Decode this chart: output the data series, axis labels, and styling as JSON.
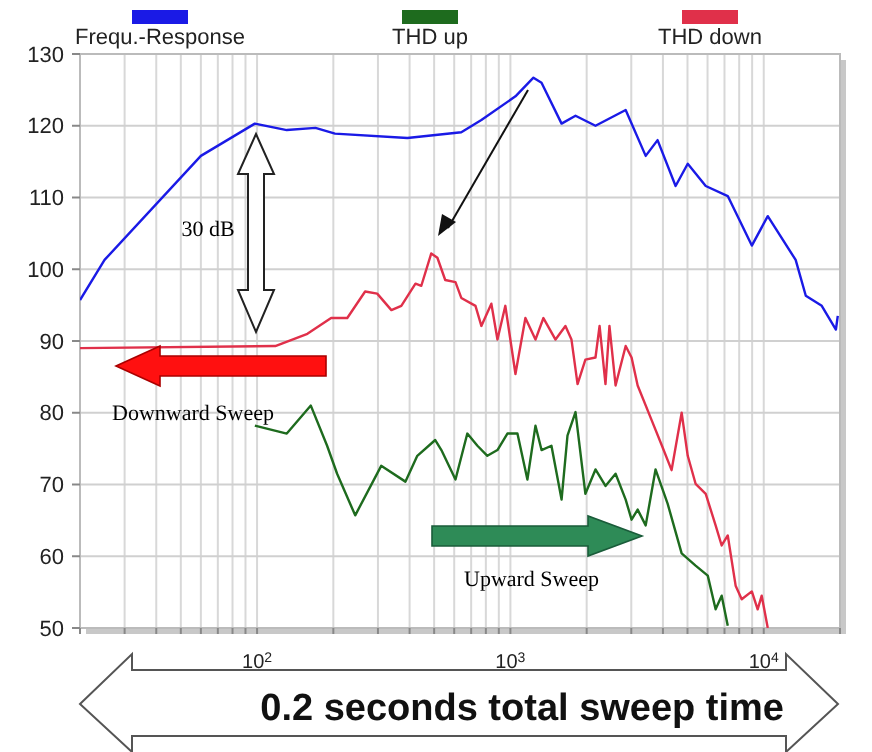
{
  "chart_data": {
    "type": "line",
    "log": "x",
    "xlim": [
      20,
      20000
    ],
    "ylim": [
      50,
      130
    ],
    "xticks": [
      {
        "value": 20,
        "label": null
      },
      {
        "value": 30,
        "label": null
      },
      {
        "value": 40,
        "label": null
      },
      {
        "value": 50,
        "label": null
      },
      {
        "value": 60,
        "label": null
      },
      {
        "value": 70,
        "label": null
      },
      {
        "value": 80,
        "label": null
      },
      {
        "value": 90,
        "label": null
      },
      {
        "value": 100,
        "label": "10$^{2}$"
      },
      {
        "value": 200,
        "label": null
      },
      {
        "value": 300,
        "label": null
      },
      {
        "value": 400,
        "label": null
      },
      {
        "value": 500,
        "label": null
      },
      {
        "value": 600,
        "label": null
      },
      {
        "value": 700,
        "label": null
      },
      {
        "value": 800,
        "label": null
      },
      {
        "value": 900,
        "label": null
      },
      {
        "value": 1000,
        "label": "10$^{3}$"
      },
      {
        "value": 2000,
        "label": null
      },
      {
        "value": 3000,
        "label": null
      },
      {
        "value": 4000,
        "label": null
      },
      {
        "value": 5000,
        "label": null
      },
      {
        "value": 6000,
        "label": null
      },
      {
        "value": 7000,
        "label": null
      },
      {
        "value": 8000,
        "label": null
      },
      {
        "value": 9000,
        "label": null
      },
      {
        "value": 10000,
        "label": "10$^{4}$"
      },
      {
        "value": 20000,
        "label": null
      }
    ],
    "yticks": [
      50,
      60,
      70,
      80,
      90,
      100,
      110,
      120,
      130
    ],
    "grid": true,
    "legend": "top",
    "marker": "none",
    "line_style": "solid",
    "series": [
      {
        "name": "Frequ.-Response",
        "color": "#1a1ae6",
        "x": [
          20,
          25,
          60,
          98,
          131,
          170,
          203,
          392,
          640,
          768,
          1047,
          1233,
          1327,
          1592,
          1807,
          2167,
          2851,
          3420,
          3810,
          4488,
          5012,
          5902,
          7211,
          8974,
          10373,
          13366,
          14655,
          16943,
          19269,
          19600
        ],
        "values": [
          95.7,
          101.3,
          115.8,
          120.3,
          119.4,
          119.7,
          118.9,
          118.3,
          119.1,
          120.8,
          124.1,
          126.7,
          126,
          120.3,
          121.4,
          120,
          122.2,
          115.8,
          118,
          111.6,
          114.7,
          111.6,
          110.2,
          103.3,
          107.4,
          101.3,
          96.3,
          94.9,
          91.6,
          93.5
        ]
      },
      {
        "name": "THD up",
        "color": "#1e6b1e",
        "x": [
          98,
          131,
          163,
          189,
          207,
          244,
          309,
          385,
          429,
          505,
          534,
          607,
          676,
          741,
          811,
          889,
          973,
          1066,
          1167,
          1256,
          1327,
          1452,
          1592,
          1680,
          1807,
          1977,
          2167,
          2373,
          2601,
          2851,
          3008,
          3179,
          3420,
          3740,
          4177,
          4742,
          5383,
          6012,
          6457,
          6823,
          7211
        ],
        "values": [
          78.2,
          77.1,
          81,
          75.4,
          71.5,
          65.7,
          72.6,
          70.4,
          74,
          76.2,
          74.8,
          70.7,
          77.1,
          75.4,
          74,
          74.8,
          77.1,
          77.1,
          70.7,
          78.2,
          74.8,
          75.4,
          67.9,
          76.8,
          80.1,
          68.7,
          72.1,
          69.8,
          71.5,
          67.9,
          65.1,
          66.5,
          64.3,
          72.1,
          67.3,
          60.4,
          58.7,
          57.3,
          52.6,
          54.5,
          50.3
        ]
      },
      {
        "name": "THD down",
        "color": "#e0304a",
        "x": [
          20,
          118,
          158,
          196,
          227,
          267,
          298,
          339,
          371,
          422,
          445,
          487,
          515,
          553,
          607,
          640,
          728,
          768,
          841,
          889,
          955,
          1047,
          1146,
          1256,
          1350,
          1507,
          1649,
          1742,
          1841,
          1977,
          2167,
          2249,
          2373,
          2460,
          2601,
          2851,
          3008,
          3179,
          3606,
          3954,
          4328,
          4742,
          5012,
          5383,
          5902,
          6457,
          6823,
          7211,
          7745,
          8185,
          8974,
          9462,
          9817,
          10373
        ],
        "values": [
          89,
          89.3,
          91,
          93.2,
          93.2,
          96.9,
          96.6,
          94.3,
          94.9,
          98,
          97.7,
          102.2,
          101.6,
          98.5,
          98.2,
          96,
          94.9,
          92.1,
          95.2,
          90.2,
          94.9,
          85.4,
          93.2,
          90.2,
          93.2,
          90.2,
          92.1,
          90.2,
          84,
          87.4,
          87.7,
          92.1,
          84,
          92.1,
          83.8,
          89.3,
          87.7,
          83.8,
          79,
          75.5,
          72,
          80,
          74,
          70.1,
          68.7,
          64.3,
          61.5,
          62.9,
          55.9,
          54,
          55.1,
          52.6,
          54.5,
          50
        ]
      }
    ],
    "annotations": [
      "30 dB",
      "Downward Sweep",
      "Upward Sweep",
      "0.2 seconds total sweep time"
    ]
  }
}
